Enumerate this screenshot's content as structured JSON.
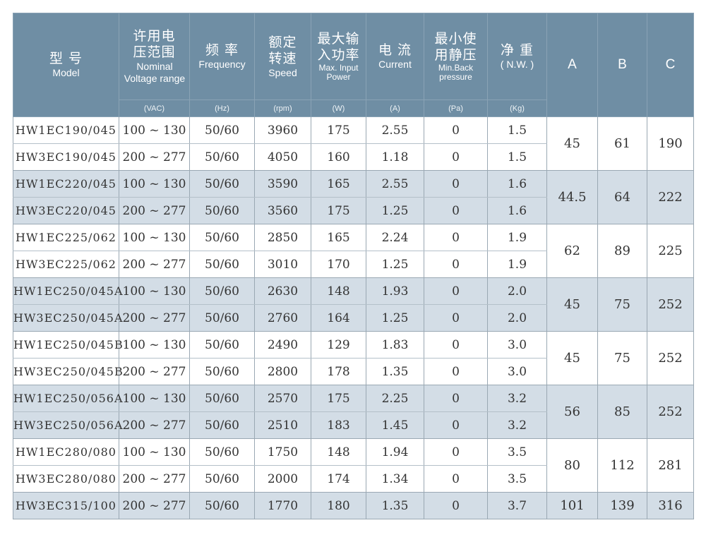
{
  "header": {
    "model": {
      "zh": "型 号",
      "en": "Model"
    },
    "voltage": {
      "zh": "许用电压范围",
      "en": "Nominal Voltage range",
      "unit": "(VAC)"
    },
    "frequency": {
      "zh": "频 率",
      "en": "Frequency",
      "unit": "(Hz)"
    },
    "speed": {
      "zh": "额定转速",
      "en": "Speed",
      "unit": "(rpm)"
    },
    "power": {
      "zh": "最大输入功率",
      "en": "Max. Input Power",
      "unit": "(W)"
    },
    "current": {
      "zh": "电 流",
      "en": "Current",
      "unit": "(A)"
    },
    "pressure": {
      "zh": "最小使用静压",
      "en": "Min.Back pressure",
      "unit": "(Pa)"
    },
    "weight": {
      "zh": "净 重",
      "en": "( N.W. )",
      "unit": "(Kg)"
    },
    "a": "A",
    "b": "B",
    "c": "C"
  },
  "groups": [
    {
      "rows": [
        {
          "model": "HW1EC190/045",
          "voltage": "100 ~ 130",
          "freq": "50/60",
          "speed": "3960",
          "power": "175",
          "current": "2.55",
          "pressure": "0",
          "weight": "1.5"
        },
        {
          "model": "HW3EC190/045",
          "voltage": "200 ~ 277",
          "freq": "50/60",
          "speed": "4050",
          "power": "160",
          "current": "1.18",
          "pressure": "0",
          "weight": "1.5"
        }
      ],
      "a": "45",
      "b": "61",
      "c": "190"
    },
    {
      "rows": [
        {
          "model": "HW1EC220/045",
          "voltage": "100 ~ 130",
          "freq": "50/60",
          "speed": "3590",
          "power": "165",
          "current": "2.55",
          "pressure": "0",
          "weight": "1.6"
        },
        {
          "model": "HW3EC220/045",
          "voltage": "200 ~ 277",
          "freq": "50/60",
          "speed": "3560",
          "power": "175",
          "current": "1.25",
          "pressure": "0",
          "weight": "1.6"
        }
      ],
      "a": "44.5",
      "b": "64",
      "c": "222"
    },
    {
      "rows": [
        {
          "model": "HW1EC225/062",
          "voltage": "100 ~ 130",
          "freq": "50/60",
          "speed": "2850",
          "power": "165",
          "current": "2.24",
          "pressure": "0",
          "weight": "1.9"
        },
        {
          "model": "HW3EC225/062",
          "voltage": "200 ~ 277",
          "freq": "50/60",
          "speed": "3010",
          "power": "170",
          "current": "1.25",
          "pressure": "0",
          "weight": "1.9"
        }
      ],
      "a": "62",
      "b": "89",
      "c": "225"
    },
    {
      "rows": [
        {
          "model": "HW1EC250/045A",
          "voltage": "100 ~ 130",
          "freq": "50/60",
          "speed": "2630",
          "power": "148",
          "current": "1.93",
          "pressure": "0",
          "weight": "2.0"
        },
        {
          "model": "HW3EC250/045A",
          "voltage": "200 ~ 277",
          "freq": "50/60",
          "speed": "2760",
          "power": "164",
          "current": "1.25",
          "pressure": "0",
          "weight": "2.0"
        }
      ],
      "a": "45",
      "b": "75",
      "c": "252"
    },
    {
      "rows": [
        {
          "model": "HW1EC250/045B",
          "voltage": "100 ~ 130",
          "freq": "50/60",
          "speed": "2490",
          "power": "129",
          "current": "1.83",
          "pressure": "0",
          "weight": "3.0"
        },
        {
          "model": "HW3EC250/045B",
          "voltage": "200 ~ 277",
          "freq": "50/60",
          "speed": "2800",
          "power": "178",
          "current": "1.35",
          "pressure": "0",
          "weight": "3.0"
        }
      ],
      "a": "45",
      "b": "75",
      "c": "252"
    },
    {
      "rows": [
        {
          "model": "HW1EC250/056A",
          "voltage": "100 ~ 130",
          "freq": "50/60",
          "speed": "2570",
          "power": "175",
          "current": "2.25",
          "pressure": "0",
          "weight": "3.2"
        },
        {
          "model": "HW3EC250/056A",
          "voltage": "200 ~ 277",
          "freq": "50/60",
          "speed": "2510",
          "power": "183",
          "current": "1.45",
          "pressure": "0",
          "weight": "3.2"
        }
      ],
      "a": "56",
      "b": "85",
      "c": "252"
    },
    {
      "rows": [
        {
          "model": "HW1EC280/080",
          "voltage": "100 ~ 130",
          "freq": "50/60",
          "speed": "1750",
          "power": "148",
          "current": "1.94",
          "pressure": "0",
          "weight": "3.5"
        },
        {
          "model": "HW3EC280/080",
          "voltage": "200 ~ 277",
          "freq": "50/60",
          "speed": "2000",
          "power": "174",
          "current": "1.34",
          "pressure": "0",
          "weight": "3.5"
        }
      ],
      "a": "80",
      "b": "112",
      "c": "281"
    },
    {
      "rows": [
        {
          "model": "HW3EC315/100",
          "voltage": "200 ~ 277",
          "freq": "50/60",
          "speed": "1770",
          "power": "180",
          "current": "1.35",
          "pressure": "0",
          "weight": "3.7"
        }
      ],
      "a": "101",
      "b": "139",
      "c": "316"
    }
  ]
}
